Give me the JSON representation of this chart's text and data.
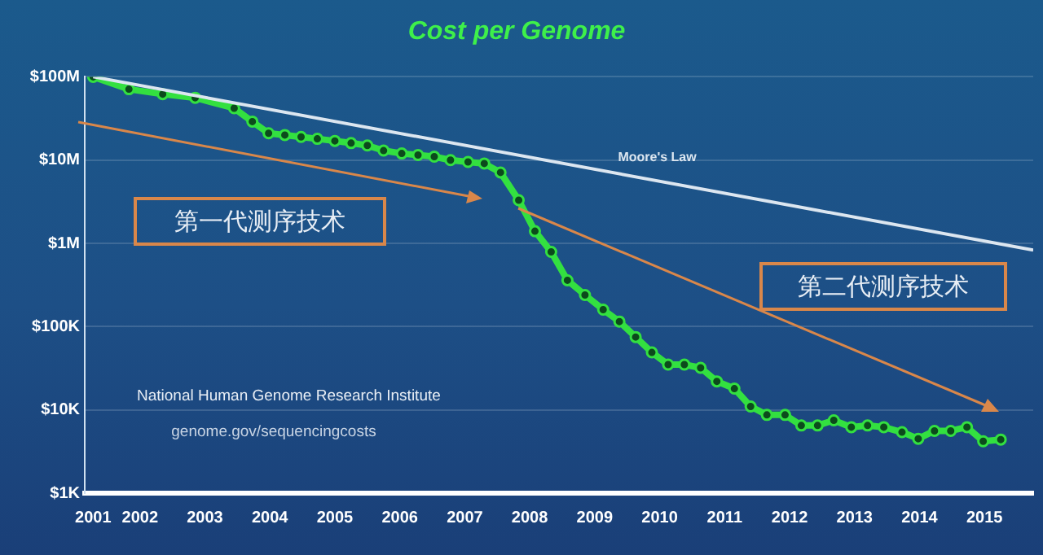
{
  "chart_data": {
    "type": "line",
    "title": "Cost per Genome",
    "log": "y",
    "grid": "y",
    "legend": false,
    "marker": "circle",
    "line_style": "solid",
    "xlim": [
      2001.15,
      2015.75
    ],
    "xticks": [
      {
        "value": 2001.28,
        "label": "2001"
      },
      2002,
      2003,
      2004,
      2005,
      2006,
      2007,
      2008,
      2009,
      2010,
      2011,
      2012,
      2013,
      2014,
      2015
    ],
    "ylim": [
      1000,
      100000000
    ],
    "yticks": [
      {
        "value": 1000,
        "label": "$1K"
      },
      {
        "value": 10000,
        "label": "$10K"
      },
      {
        "value": 100000,
        "label": "$100K"
      },
      {
        "value": 1000000,
        "label": "$1M"
      },
      {
        "value": 10000000,
        "label": "$10M"
      },
      {
        "value": 100000000,
        "label": "$100M"
      }
    ],
    "series": [
      {
        "name": "Moore's Law",
        "color": "#dce6f0",
        "marker": "none",
        "x": [
          2001.28,
          2015.75
        ],
        "values": [
          100000000,
          830000
        ]
      },
      {
        "color": "#33e040",
        "x": [
          2001.28,
          2001.83,
          2002.35,
          2002.85,
          2003.45,
          2003.73,
          2003.98,
          2004.23,
          2004.48,
          2004.73,
          2005.0,
          2005.25,
          2005.5,
          2005.75,
          2006.03,
          2006.28,
          2006.53,
          2006.78,
          2007.05,
          2007.3,
          2007.55,
          2007.83,
          2008.08,
          2008.33,
          2008.58,
          2008.85,
          2009.13,
          2009.38,
          2009.63,
          2009.88,
          2010.13,
          2010.38,
          2010.63,
          2010.88,
          2011.15,
          2011.4,
          2011.65,
          2011.93,
          2012.18,
          2012.43,
          2012.68,
          2012.95,
          2013.2,
          2013.45,
          2013.73,
          2013.98,
          2014.23,
          2014.48,
          2014.73,
          2014.98,
          2015.25
        ],
        "values": [
          100000000,
          71000000,
          62000000,
          56000000,
          42000000,
          29000000,
          21000000,
          20000000,
          19000000,
          18000000,
          17000000,
          16000000,
          15000000,
          13000000,
          12000000,
          11500000,
          11000000,
          10000000,
          9500000,
          9100000,
          7100000,
          3300000,
          1400000,
          790000,
          360000,
          240000,
          160000,
          115000,
          75000,
          49000,
          35000,
          35000,
          32000,
          22000,
          18000,
          11000,
          8700,
          8700,
          6500,
          6500,
          7500,
          6200,
          6500,
          6200,
          5400,
          4500,
          5600,
          5600,
          6200,
          4200,
          4400
        ]
      }
    ],
    "annotations": [
      "第一代测序技术",
      "第二代测序技术",
      "National Human Genome Research Institute",
      "genome.gov/sequencingcosts"
    ]
  }
}
